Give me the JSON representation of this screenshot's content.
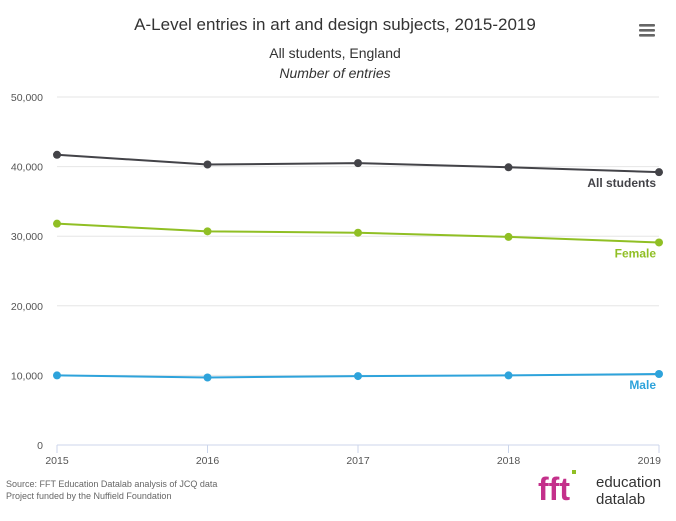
{
  "chart_data": {
    "type": "line",
    "title": "A-Level entries in art and design subjects, 2015-2019",
    "subtitle_line1": "All students, England",
    "subtitle_line2": "Number of entries",
    "x": [
      "2015",
      "2016",
      "2017",
      "2018",
      "2019"
    ],
    "ylim": [
      0,
      50000
    ],
    "y_ticks": [
      "0",
      "10,000",
      "20,000",
      "30,000",
      "40,000",
      "50,000"
    ],
    "y_tick_values": [
      0,
      10000,
      20000,
      30000,
      40000,
      50000
    ],
    "grid": true,
    "series": [
      {
        "name": "All students",
        "color": "#434348",
        "values": [
          41700,
          40300,
          40500,
          39900,
          39200
        ]
      },
      {
        "name": "Female",
        "color": "#90bf24",
        "values": [
          31800,
          30700,
          30500,
          29900,
          29100
        ]
      },
      {
        "name": "Male",
        "color": "#2ea3db",
        "values": [
          10000,
          9700,
          9900,
          10000,
          10200
        ]
      }
    ]
  },
  "source_line1": "Source: FFT Education Datalab analysis of JCQ data",
  "source_line2": "Project funded by the Nuffield Foundation",
  "logo": {
    "mark": "fft",
    "line1": "education",
    "line2": "datalab",
    "mark_color": "#c4308b",
    "mark_color_2": "#90bf24"
  },
  "menu_icon": "hamburger-menu-icon"
}
